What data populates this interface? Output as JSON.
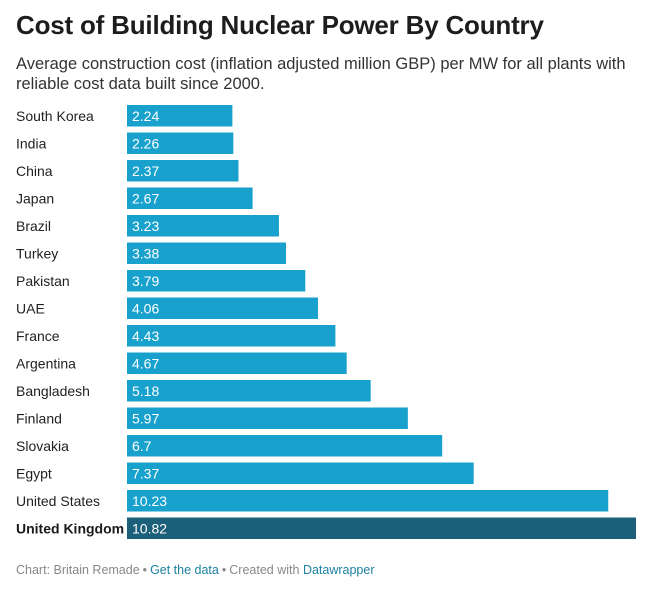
{
  "header": {
    "title": "Cost of Building Nuclear Power By Country",
    "subtitle": "Average construction cost (inflation adjusted million GBP) per MW for all plants with reliable cost data built since 2000."
  },
  "chart_data": {
    "type": "bar",
    "orientation": "horizontal",
    "categories": [
      "South Korea",
      "India",
      "China",
      "Japan",
      "Brazil",
      "Turkey",
      "Pakistan",
      "UAE",
      "France",
      "Argentina",
      "Bangladesh",
      "Finland",
      "Slovakia",
      "Egypt",
      "United States",
      "United Kingdom"
    ],
    "values": [
      2.24,
      2.26,
      2.37,
      2.67,
      3.23,
      3.38,
      3.79,
      4.06,
      4.43,
      4.67,
      5.18,
      5.97,
      6.7,
      7.37,
      10.23,
      10.82
    ],
    "value_labels": [
      "2.24",
      "2.26",
      "2.37",
      "2.67",
      "3.23",
      "3.38",
      "3.79",
      "4.06",
      "4.43",
      "4.67",
      "5.18",
      "5.97",
      "6.7",
      "7.37",
      "10.23",
      "10.82"
    ],
    "highlight": "United Kingdom",
    "xlim": [
      0,
      10.82
    ],
    "title": "Cost of Building Nuclear Power By Country",
    "xlabel": "",
    "ylabel": "",
    "colors": {
      "bar": "#18a1cd",
      "highlight": "#1b5f78"
    }
  },
  "footer": {
    "source": "Chart: Britain Remade",
    "sep1": "•",
    "get_data": "Get the data",
    "sep2": "•",
    "created_with": "Created with",
    "tool": "Datawrapper"
  }
}
